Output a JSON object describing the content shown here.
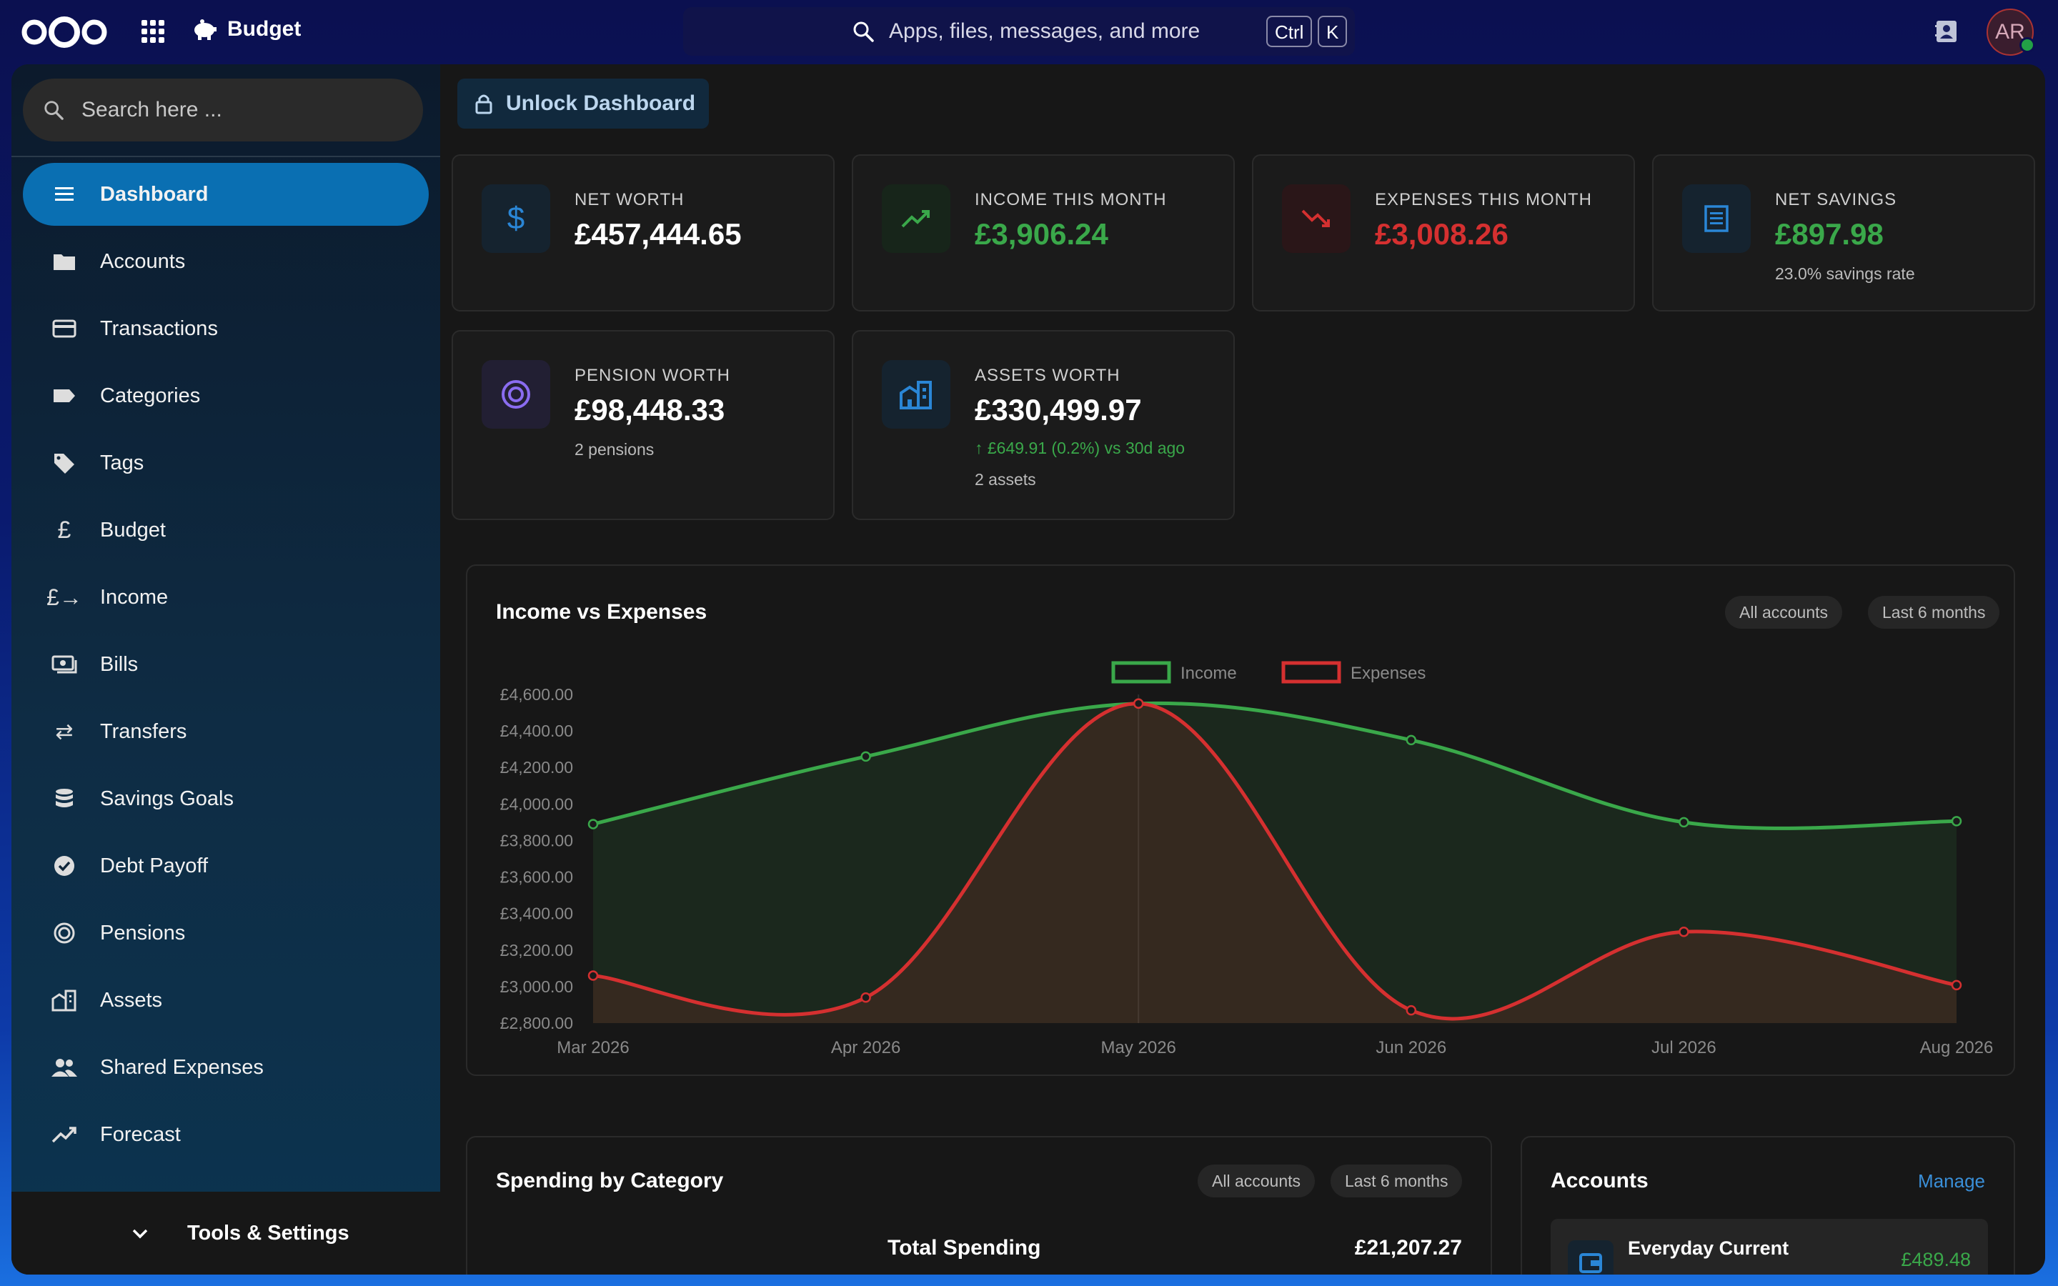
{
  "topbar": {
    "app_name": "Budget",
    "search_placeholder": "Apps, files, messages, and more",
    "kbd_ctrl": "Ctrl",
    "kbd_k": "K",
    "avatar_initials": "AR"
  },
  "sidebar": {
    "search_placeholder": "Search here ...",
    "items": [
      {
        "label": "Dashboard",
        "icon": "menu-icon",
        "active": true
      },
      {
        "label": "Accounts",
        "icon": "folder-icon"
      },
      {
        "label": "Transactions",
        "icon": "credit-card-icon"
      },
      {
        "label": "Categories",
        "icon": "label-icon"
      },
      {
        "label": "Tags",
        "icon": "tag-icon"
      },
      {
        "label": "Budget",
        "icon": "pound-icon"
      },
      {
        "label": "Income",
        "icon": "pound-arrow-icon"
      },
      {
        "label": "Bills",
        "icon": "cash-icon"
      },
      {
        "label": "Transfers",
        "icon": "swap-icon"
      },
      {
        "label": "Savings Goals",
        "icon": "database-icon"
      },
      {
        "label": "Debt Payoff",
        "icon": "check-circle-icon"
      },
      {
        "label": "Pensions",
        "icon": "target-icon"
      },
      {
        "label": "Assets",
        "icon": "building-icon"
      },
      {
        "label": "Shared Expenses",
        "icon": "people-icon"
      },
      {
        "label": "Forecast",
        "icon": "trend-icon"
      }
    ],
    "tools_label": "Tools & Settings"
  },
  "dashboard": {
    "unlock_label": "Unlock Dashboard",
    "cards": {
      "net_worth": {
        "label": "NET WORTH",
        "value": "£457,444.65"
      },
      "income": {
        "label": "INCOME THIS MONTH",
        "value": "£3,906.24"
      },
      "expenses": {
        "label": "EXPENSES THIS MONTH",
        "value": "£3,008.26"
      },
      "savings": {
        "label": "NET SAVINGS",
        "value": "£897.98",
        "sub": "23.0% savings rate"
      },
      "pension": {
        "label": "PENSION WORTH",
        "value": "£98,448.33",
        "sub": "2 pensions"
      },
      "assets": {
        "label": "ASSETS WORTH",
        "value": "£330,499.97",
        "change": "↑ £649.91 (0.2%) vs 30d ago",
        "sub": "2 assets"
      }
    },
    "income_expenses": {
      "title": "Income vs Expenses",
      "filter_accounts": "All accounts",
      "filter_period": "Last 6 months"
    },
    "spending": {
      "title": "Spending by Category",
      "filter_accounts": "All accounts",
      "filter_period": "Last 6 months",
      "total_label": "Total Spending",
      "total_value": "£21,207.27"
    },
    "accounts": {
      "title": "Accounts",
      "manage_label": "Manage",
      "first_account_name": "Everyday Current",
      "first_account_balance": "£489.48"
    }
  },
  "colors": {
    "accent": "#0a6fb2",
    "income": "#3aa84a",
    "expense": "#d53030"
  },
  "chart_data": {
    "type": "line",
    "title": "Income vs Expenses",
    "categories": [
      "Mar 2026",
      "Apr 2026",
      "May 2026",
      "Jun 2026",
      "Jul 2026",
      "Aug 2026"
    ],
    "series": [
      {
        "name": "Income",
        "values": [
          3890,
          4260,
          4550,
          4350,
          3900,
          3906
        ]
      },
      {
        "name": "Expenses",
        "values": [
          3060,
          2940,
          4550,
          2870,
          3300,
          3008
        ]
      }
    ],
    "yticks": [
      "£2,800.00",
      "£3,000.00",
      "£3,200.00",
      "£3,400.00",
      "£3,600.00",
      "£3,800.00",
      "£4,000.00",
      "£4,200.00",
      "£4,400.00",
      "£4,600.00"
    ],
    "ylim": [
      2800,
      4600
    ],
    "legend": "top-center",
    "grid": false
  }
}
